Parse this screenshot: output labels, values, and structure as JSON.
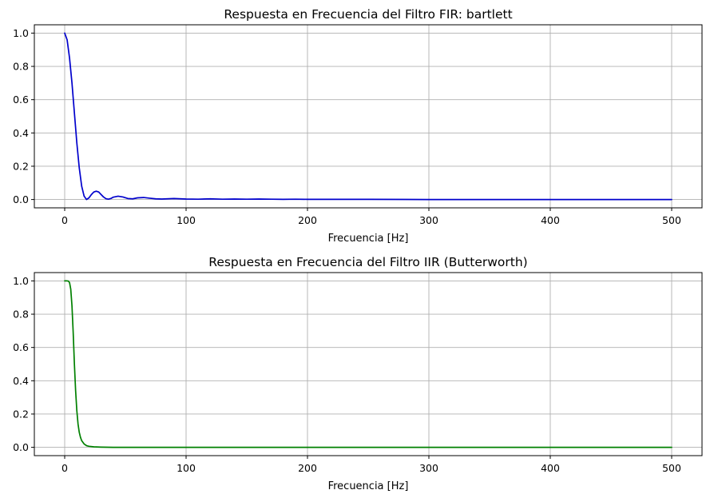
{
  "chart_data": [
    {
      "type": "line",
      "title": "Respuesta en Frecuencia del Filtro FIR: bartlett",
      "xlabel": "Frecuencia [Hz]",
      "ylabel": "",
      "xlim": [
        -25,
        525
      ],
      "ylim": [
        -0.05,
        1.05
      ],
      "xticks": [
        0,
        100,
        200,
        300,
        400,
        500
      ],
      "yticks": [
        0.0,
        0.2,
        0.4,
        0.6,
        0.8,
        1.0
      ],
      "xtick_labels": [
        "0",
        "100",
        "200",
        "300",
        "400",
        "500"
      ],
      "ytick_labels": [
        "0.0",
        "0.2",
        "0.4",
        "0.6",
        "0.8",
        "1.0"
      ],
      "grid": true,
      "color": "#0000cc",
      "series": [
        {
          "x": [
            0,
            2,
            4,
            6,
            8,
            10,
            12,
            14,
            16,
            18,
            20,
            22,
            24,
            26,
            28,
            30,
            32,
            34,
            36,
            38,
            40,
            44,
            48,
            52,
            56,
            60,
            65,
            70,
            75,
            80,
            90,
            100,
            110,
            120,
            130,
            140,
            150,
            160,
            170,
            180,
            190,
            200,
            250,
            300,
            350,
            400,
            450,
            500
          ],
          "y": [
            1.0,
            0.96,
            0.85,
            0.7,
            0.52,
            0.34,
            0.19,
            0.08,
            0.02,
            0.0,
            0.01,
            0.03,
            0.045,
            0.05,
            0.045,
            0.03,
            0.015,
            0.005,
            0.002,
            0.006,
            0.014,
            0.02,
            0.015,
            0.006,
            0.004,
            0.01,
            0.012,
            0.008,
            0.004,
            0.003,
            0.006,
            0.003,
            0.002,
            0.004,
            0.002,
            0.003,
            0.002,
            0.003,
            0.002,
            0.001,
            0.002,
            0.001,
            0.001,
            0.0,
            0.0,
            0.0,
            0.0,
            0.0
          ]
        }
      ]
    },
    {
      "type": "line",
      "title": "Respuesta en Frecuencia del Filtro IIR (Butterworth)",
      "xlabel": "Frecuencia [Hz]",
      "ylabel": "",
      "xlim": [
        -25,
        525
      ],
      "ylim": [
        -0.05,
        1.05
      ],
      "xticks": [
        0,
        100,
        200,
        300,
        400,
        500
      ],
      "yticks": [
        0.0,
        0.2,
        0.4,
        0.6,
        0.8,
        1.0
      ],
      "xtick_labels": [
        "0",
        "100",
        "200",
        "300",
        "400",
        "500"
      ],
      "ytick_labels": [
        "0.0",
        "0.2",
        "0.4",
        "0.6",
        "0.8",
        "1.0"
      ],
      "grid": true,
      "color": "#008000",
      "series": [
        {
          "x": [
            0,
            2,
            3,
            4,
            5,
            6,
            7,
            8,
            9,
            10,
            11,
            12,
            13,
            14,
            16,
            18,
            20,
            24,
            30,
            40,
            60,
            100,
            200,
            300,
            400,
            500
          ],
          "y": [
            1.0,
            1.0,
            0.999,
            0.99,
            0.95,
            0.85,
            0.69,
            0.5,
            0.34,
            0.22,
            0.14,
            0.09,
            0.06,
            0.04,
            0.02,
            0.01,
            0.006,
            0.003,
            0.001,
            0.0,
            0.0,
            0.0,
            0.0,
            0.0,
            0.0,
            0.0
          ]
        }
      ]
    }
  ]
}
